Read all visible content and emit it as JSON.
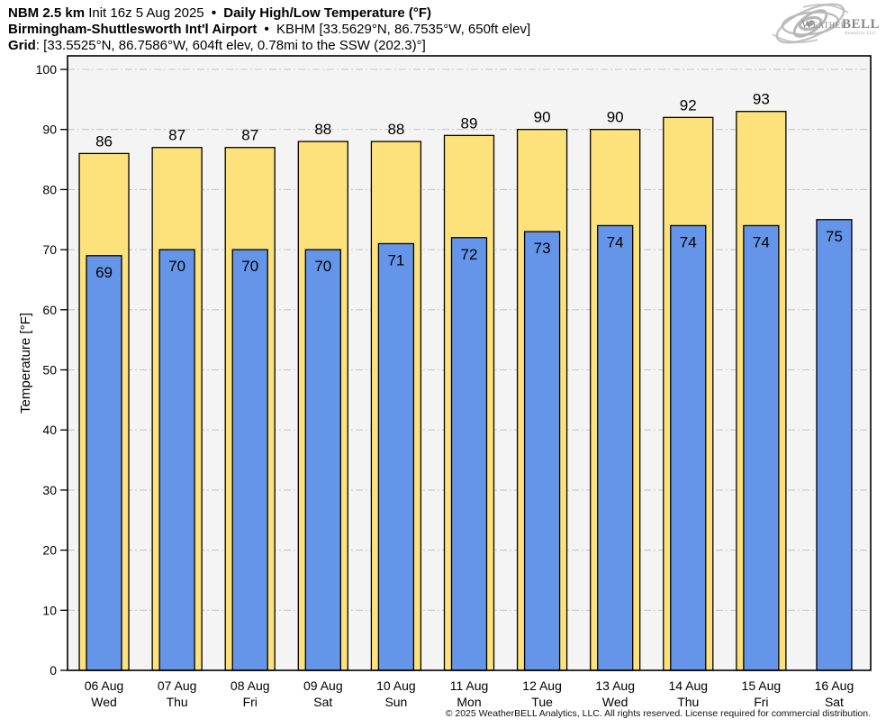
{
  "header": {
    "line1_model": "NBM 2.5 km",
    "line1_init": "Init 16z 5 Aug 2025",
    "line1_sep": "•",
    "line1_product": "Daily High/Low Temperature (°F)",
    "line2_station": "Birmingham-Shuttlesworth Int'l Airport",
    "line2_sep": "•",
    "line2_meta": "KBHM [33.5629°N, 86.7535°W, 650ft elev]",
    "line3_label": "Grid",
    "line3_value": ": [33.5525°N, 86.7586°W, 604ft elev, 0.78mi to the SSW (202.3)°]"
  },
  "logo": {
    "brand_weather": "Weather",
    "brand_bell": "BELL",
    "subtext": "Analytics LLC"
  },
  "footer": {
    "copyright": "© 2025 WeatherBELL Analytics, LLC. All rights reserved. License required for commercial distribution."
  },
  "colors": {
    "high_bar": "#FDE17B",
    "low_bar": "#6495E8",
    "bar_border": "#000000",
    "plot_bg": "#F4F4F4",
    "grid_line": "#C8C8C8",
    "axis": "#000000",
    "logo_gray": "#B6B6B6",
    "logo_text": "#8C8C8C"
  },
  "chart_data": {
    "type": "bar",
    "title": "NBM 2.5 km Init 16z 5 Aug 2025 • Daily High/Low Temperature (°F)",
    "subtitle": "Birmingham-Shuttlesworth Int'l Airport • KBHM [33.5629°N, 86.7535°W, 650ft elev]",
    "grid_note": "Grid: [33.5525°N, 86.7586°W, 604ft elev, 0.78mi to the SSW (202.3)°]",
    "xlabel": "",
    "ylabel": "Temperature [°F]",
    "ylim": [
      0,
      100
    ],
    "ytick_step": 10,
    "grid": true,
    "legend_position": "none",
    "categories": [
      {
        "date": "06 Aug",
        "weekday": "Wed"
      },
      {
        "date": "07 Aug",
        "weekday": "Thu"
      },
      {
        "date": "08 Aug",
        "weekday": "Fri"
      },
      {
        "date": "09 Aug",
        "weekday": "Sat"
      },
      {
        "date": "10 Aug",
        "weekday": "Sun"
      },
      {
        "date": "11 Aug",
        "weekday": "Mon"
      },
      {
        "date": "12 Aug",
        "weekday": "Tue"
      },
      {
        "date": "13 Aug",
        "weekday": "Wed"
      },
      {
        "date": "14 Aug",
        "weekday": "Thu"
      },
      {
        "date": "15 Aug",
        "weekday": "Fri"
      },
      {
        "date": "16 Aug",
        "weekday": "Sat"
      }
    ],
    "series": [
      {
        "name": "Daily High",
        "color": "#FDE17B",
        "values": [
          86,
          87,
          87,
          88,
          88,
          89,
          90,
          90,
          92,
          93,
          null
        ]
      },
      {
        "name": "Daily Low",
        "color": "#6495E8",
        "values": [
          69,
          70,
          70,
          70,
          71,
          72,
          73,
          74,
          74,
          74,
          75
        ]
      }
    ]
  }
}
